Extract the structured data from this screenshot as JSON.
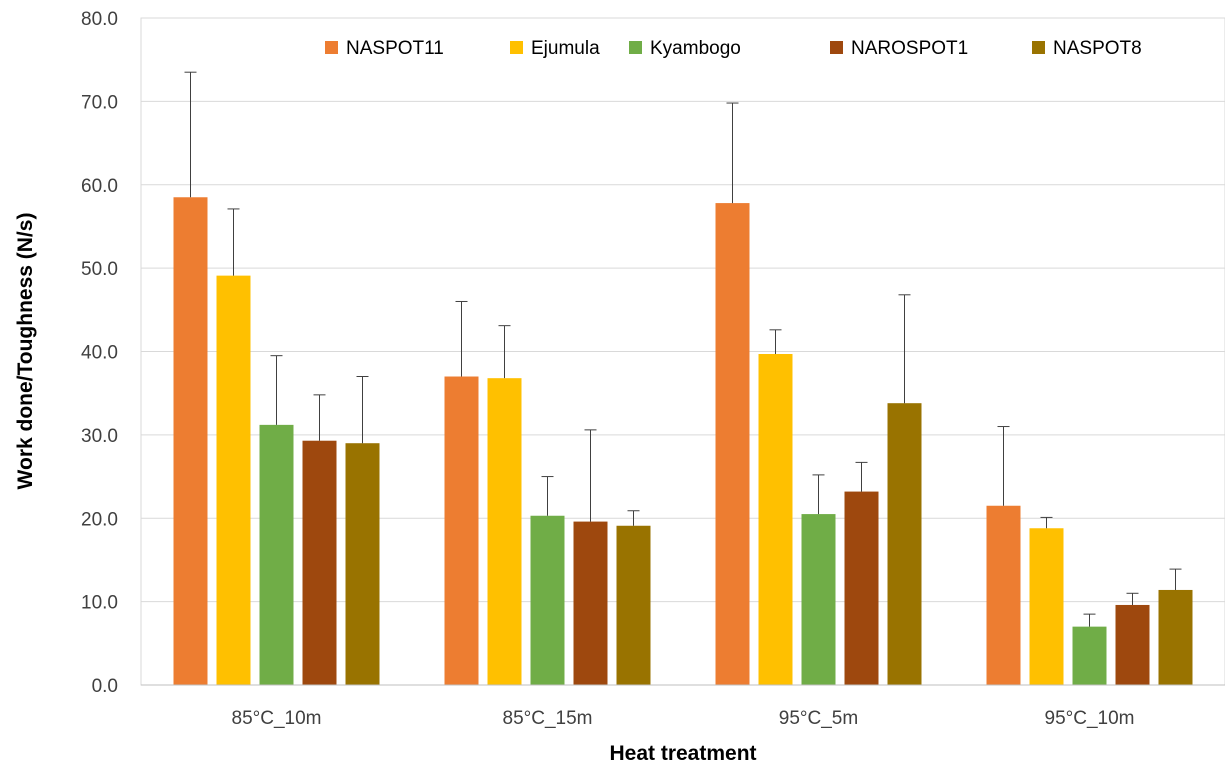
{
  "chart_data": {
    "type": "bar",
    "xlabel": "Heat treatment",
    "ylabel": "Work done/Toughness (N/s)",
    "ylim": [
      0,
      80
    ],
    "yticks": [
      "0.0",
      "10.0",
      "20.0",
      "30.0",
      "40.0",
      "50.0",
      "60.0",
      "70.0",
      "80.0"
    ],
    "grid": true,
    "legend_position": "top",
    "categories": [
      "85°C_10m",
      "85°C_15m",
      "95°C_5m",
      "95°C_10m"
    ],
    "series": [
      {
        "name": "NASPOT11",
        "color": "#ED7D31",
        "values": [
          58.5,
          37.0,
          57.8,
          21.5
        ],
        "errors": [
          15.0,
          9.0,
          12.0,
          9.5
        ]
      },
      {
        "name": "Ejumula",
        "color": "#FFC000",
        "values": [
          49.1,
          36.8,
          39.7,
          18.8
        ],
        "errors": [
          8.0,
          6.3,
          2.9,
          1.3
        ]
      },
      {
        "name": "Kyambogo",
        "color": "#70AD47",
        "values": [
          31.2,
          20.3,
          20.5,
          7.0
        ],
        "errors": [
          8.3,
          4.7,
          4.7,
          1.5
        ]
      },
      {
        "name": "NAROSPOT1",
        "color": "#9E480E",
        "values": [
          29.3,
          19.6,
          23.2,
          9.6
        ],
        "errors": [
          5.5,
          11.0,
          3.5,
          1.4
        ]
      },
      {
        "name": "NASPOT8",
        "color": "#997300",
        "values": [
          29.0,
          19.1,
          33.8,
          11.4
        ],
        "errors": [
          8.0,
          1.8,
          13.0,
          2.5
        ]
      }
    ]
  }
}
